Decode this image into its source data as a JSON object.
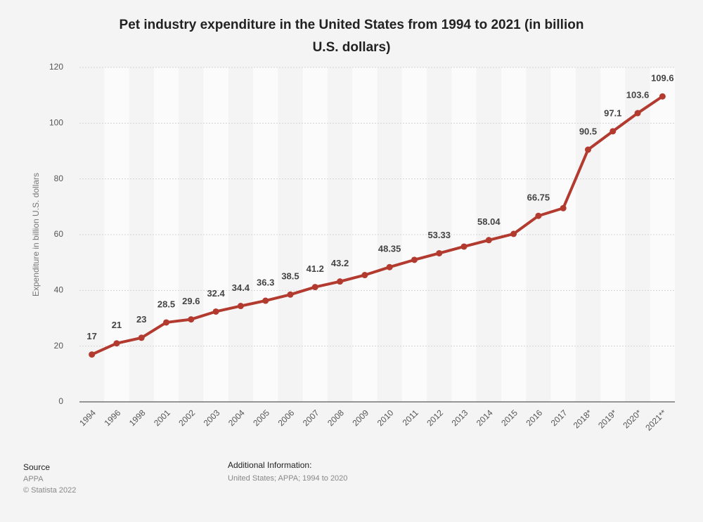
{
  "chart_data": {
    "type": "line",
    "title": "Pet industry expenditure in the United States from 1994 to 2021 (in billion",
    "title_line2": "U.S. dollars)",
    "y_label": "Expenditure in billion U.S. dollars",
    "categories": [
      "1994",
      "1996",
      "1998",
      "2001",
      "2002",
      "2003",
      "2004",
      "2005",
      "2006",
      "2007",
      "2008",
      "2009",
      "2010",
      "2011",
      "2012",
      "2013",
      "2014",
      "2015",
      "2016",
      "2017",
      "2018*",
      "2019*",
      "2020*",
      "2021**"
    ],
    "series": [
      {
        "name": "Expenditure",
        "color": "#b23a2f",
        "values": [
          17,
          21,
          23,
          28.5,
          29.6,
          32.4,
          34.4,
          36.3,
          38.5,
          41.2,
          43.2,
          45.5,
          48.35,
          50.96,
          53.33,
          55.72,
          58.04,
          60.28,
          66.75,
          69.51,
          90.5,
          97.1,
          103.6,
          109.6
        ],
        "value_labels": [
          "17",
          "21",
          "23",
          "28.5",
          "29.6",
          "32.4",
          "34.4",
          "36.3",
          "38.5",
          "41.2",
          "43.2",
          null,
          "48.35",
          null,
          "53.33",
          null,
          "58.04",
          null,
          "66.75",
          null,
          "90.5",
          "97.1",
          "103.6",
          "109.6"
        ]
      }
    ],
    "ylim": [
      0,
      120
    ],
    "yticks": [
      0,
      20,
      40,
      60,
      80,
      100,
      120
    ],
    "grid": true
  },
  "footer": {
    "source_title": "Source",
    "source": "APPA",
    "copyright": "© Statista 2022",
    "info_title": "Additional Information:",
    "info": "United States; APPA; 1994 to 2020"
  }
}
